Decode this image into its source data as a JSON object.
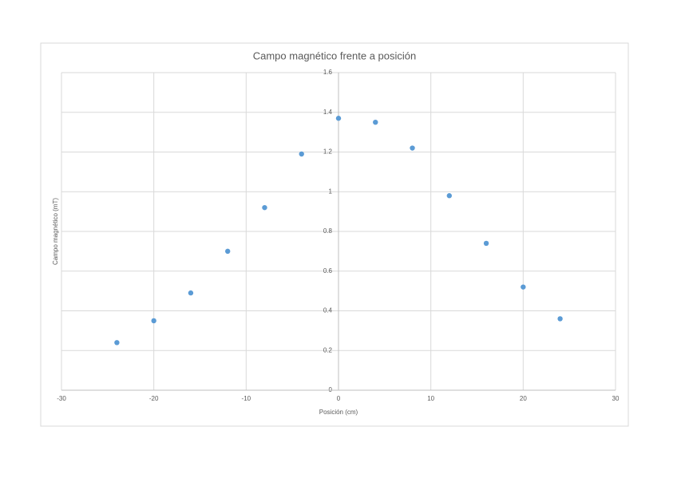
{
  "chart_data": {
    "type": "scatter",
    "title": "Campo magnético frente a posición",
    "x_label": "Posición (cm)",
    "y_label": "Campo magnético (mT)",
    "series": [
      {
        "color": "#5b9bd5",
        "x": [
          -24,
          -20,
          -16,
          -12,
          -8,
          -4,
          0,
          4,
          8,
          12,
          16,
          20,
          24
        ],
        "values": [
          0.24,
          0.35,
          0.49,
          0.7,
          0.92,
          1.19,
          1.37,
          1.35,
          1.22,
          0.98,
          0.74,
          0.52,
          0.36
        ]
      }
    ],
    "xlim": [
      -30,
      30
    ],
    "xticks": [
      -30,
      -20,
      -10,
      0,
      10,
      20,
      30
    ],
    "ylim": [
      0,
      1.6
    ],
    "yticks": [
      0,
      0.2,
      0.4,
      0.6,
      0.8,
      1,
      1.2,
      1.4,
      1.6
    ],
    "grid": true
  }
}
